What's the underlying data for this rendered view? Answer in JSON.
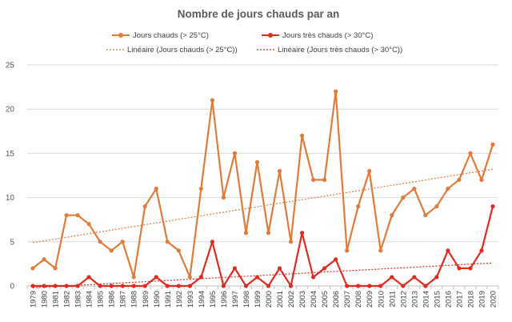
{
  "chart_data": {
    "type": "line",
    "title": "Nombre de jours chauds par an",
    "xlabel": "",
    "ylabel": "",
    "ylim": [
      0,
      25
    ],
    "yticks": [
      "0",
      "5",
      "10",
      "15",
      "20",
      "25"
    ],
    "grid": true,
    "legend_position": "top",
    "x": [
      "1979",
      "1980",
      "1981",
      "1982",
      "1983",
      "1984",
      "1985",
      "1986",
      "1987",
      "1988",
      "1989",
      "1990",
      "1991",
      "1992",
      "1993",
      "1994",
      "1995",
      "1996",
      "1997",
      "1998",
      "1999",
      "2000",
      "2001",
      "2002",
      "2003",
      "2004",
      "2005",
      "2006",
      "2007",
      "2008",
      "2009",
      "2010",
      "2011",
      "2012",
      "2013",
      "2014",
      "2015",
      "2016",
      "2017",
      "2018",
      "2019",
      "2020"
    ],
    "series": [
      {
        "name": "Jours chauds (> 25°C)",
        "color": "#E07B39",
        "values": [
          2,
          3,
          2,
          8,
          8,
          7,
          5,
          4,
          5,
          1,
          9,
          11,
          5,
          4,
          1,
          11,
          21,
          10,
          15,
          6,
          14,
          6,
          13,
          5,
          17,
          12,
          12,
          22,
          4,
          9,
          13,
          4,
          8,
          10,
          11,
          8,
          9,
          11,
          12,
          15,
          12,
          16
        ]
      },
      {
        "name": "Jours très chauds (> 30°C)",
        "color": "#E02B20",
        "values": [
          0,
          0,
          0,
          0,
          0,
          1,
          0,
          0,
          0,
          0,
          0,
          1,
          0,
          0,
          0,
          1,
          5,
          0,
          2,
          0,
          1,
          0,
          2,
          0,
          6,
          1,
          2,
          3,
          0,
          0,
          0,
          0,
          1,
          0,
          1,
          0,
          1,
          4,
          2,
          2,
          4,
          9
        ]
      }
    ],
    "trendlines": [
      {
        "name": "Linéaire (Jours chauds (> 25°C))",
        "color": "#E07B39",
        "start": 4.9,
        "end": 13.2
      },
      {
        "name": "Linéaire (Jours très chauds (> 30°C))",
        "color": "#E02B20",
        "start": -0.2,
        "end": 2.6
      }
    ]
  }
}
